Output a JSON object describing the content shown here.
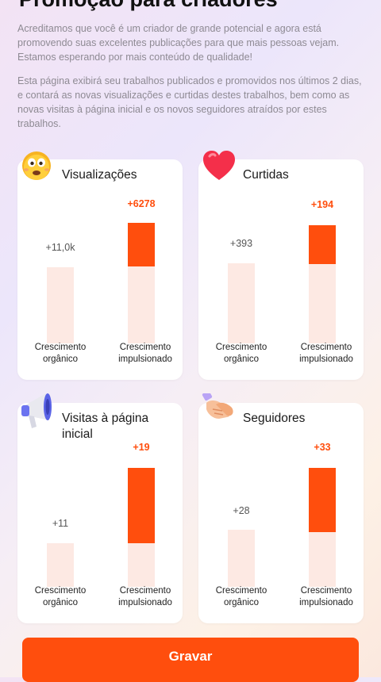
{
  "page": {
    "title": "Promoção para criadores",
    "paragraph1": "Acreditamos que você é um criador de grande potencial e agora está promovendo suas excelentes publicações para que mais pessoas vejam. Estamos esperando por mais conteúdo de qualidade!",
    "paragraph2": "Esta página exibirá seu trabalhos publicados e promovidos nos últimos 2 dias, e contará as novas visualizações e curtidas destes trabalhos, bem como as novas visitas à página inicial e os novos seguidores atraídos por estes trabalhos."
  },
  "cards": [
    {
      "title": "Visualizações",
      "icon": "surprised-face-icon",
      "organic_value": "+11,0k",
      "boosted_value": "+6278",
      "organic_label": "Crescimento orgânico",
      "boosted_label": "Crescimento impulsionado",
      "organic_ratio": 0.0,
      "boosted_ratio": 0.36
    },
    {
      "title": "Curtidas",
      "icon": "heart-icon",
      "organic_value": "+393",
      "boosted_value": "+194",
      "organic_label": "Crescimento orgânico",
      "boosted_label": "Crescimento impulsionado",
      "organic_ratio": 0.0,
      "boosted_ratio": 0.33
    },
    {
      "title": "Visitas à página inicial",
      "icon": "megaphone-icon",
      "organic_value": "+11",
      "boosted_value": "+19",
      "organic_label": "Crescimento orgânico",
      "boosted_label": "Crescimento impulsionado",
      "organic_ratio": 0.0,
      "boosted_ratio": 0.63
    },
    {
      "title": "Seguidores",
      "icon": "handshake-icon",
      "organic_value": "+28",
      "boosted_value": "+33",
      "organic_label": "Crescimento orgânico",
      "boosted_label": "Crescimento impulsionado",
      "organic_ratio": 0.0,
      "boosted_ratio": 0.54
    }
  ],
  "actions": {
    "save_label": "Gravar"
  },
  "colors": {
    "accent": "#ff4e0d",
    "bar_background": "#fde9e3",
    "muted_text": "#8e8a93"
  }
}
